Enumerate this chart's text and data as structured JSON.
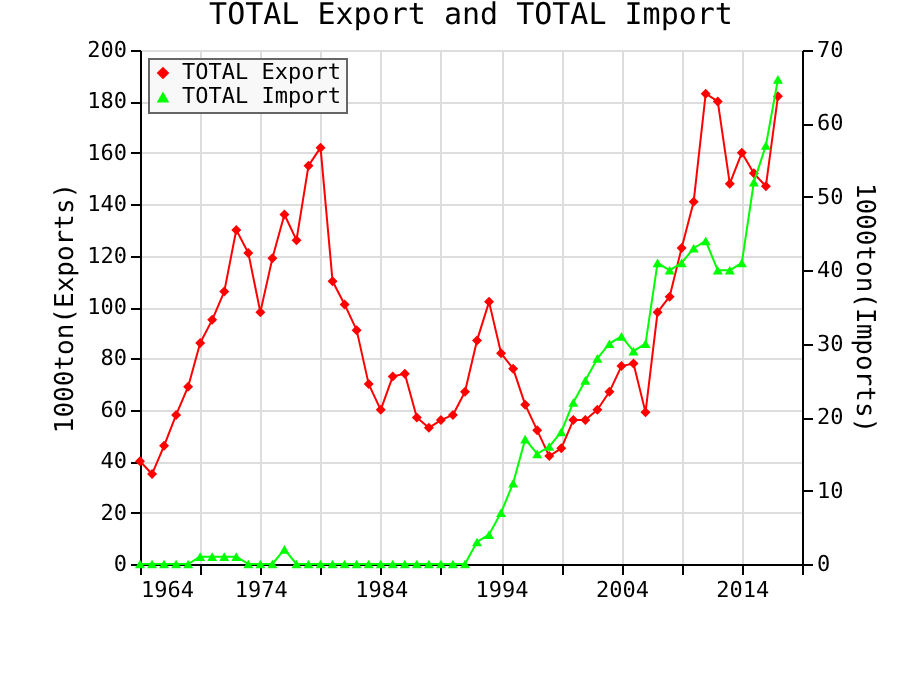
{
  "chart_data": {
    "type": "line",
    "title": "TOTAL Export and TOTAL Import",
    "ylabel": "1000ton(Exports)",
    "y2label": "1000ton(Imports)",
    "x": [
      1964,
      1965,
      1966,
      1967,
      1968,
      1969,
      1970,
      1971,
      1972,
      1973,
      1974,
      1975,
      1976,
      1977,
      1978,
      1979,
      1980,
      1981,
      1982,
      1983,
      1984,
      1985,
      1986,
      1987,
      1988,
      1989,
      1990,
      1991,
      1992,
      1993,
      1994,
      1995,
      1996,
      1997,
      1998,
      1999,
      2000,
      2001,
      2002,
      2003,
      2004,
      2005,
      2006,
      2007,
      2008,
      2009,
      2010,
      2011,
      2012,
      2013,
      2014,
      2015,
      2016,
      2017
    ],
    "series": [
      {
        "name": "TOTAL Export",
        "color": "#ff0000",
        "marker": "diamond",
        "values": [
          40,
          35,
          46,
          58,
          69,
          86,
          95,
          106,
          130,
          121,
          98,
          119,
          136,
          126,
          155,
          162,
          110,
          101,
          91,
          70,
          60,
          73,
          74,
          57,
          53,
          56,
          58,
          67,
          87,
          102,
          82,
          76,
          62,
          52,
          42,
          45,
          56,
          56,
          60,
          67,
          77,
          78,
          59,
          98,
          104,
          123,
          141,
          183,
          180,
          148,
          160,
          152,
          147,
          182
        ]
      },
      {
        "name": "TOTAL Import",
        "color": "#00ff00",
        "marker": "triangle",
        "axis": "y2",
        "values": [
          0,
          0,
          0,
          0,
          0,
          1,
          1,
          1,
          1,
          0,
          0,
          0,
          2,
          0,
          0,
          0,
          0,
          0,
          0,
          0,
          0,
          0,
          0,
          0,
          0,
          0,
          0,
          0,
          3,
          4,
          7,
          11,
          17,
          15,
          16,
          18,
          22,
          25,
          28,
          30,
          31,
          29,
          30,
          41,
          40,
          41,
          43,
          44,
          40,
          40,
          41,
          52,
          57,
          66
        ]
      }
    ],
    "xlim": [
      1964,
      2019
    ],
    "xticks": [
      1964,
      {
        "value": 1969,
        "label": null
      },
      1974,
      {
        "value": 1979,
        "label": null
      },
      1984,
      {
        "value": 1989,
        "label": null
      },
      1994,
      {
        "value": 1999,
        "label": null
      },
      2004,
      {
        "value": 2009,
        "label": null
      },
      2014,
      {
        "value": 2019,
        "label": null
      }
    ],
    "ylim": [
      0,
      200
    ],
    "yticks": [
      0,
      20,
      40,
      60,
      80,
      100,
      120,
      140,
      160,
      180,
      200
    ],
    "y2lim": [
      0,
      70
    ],
    "y2ticks": [
      0,
      10,
      20,
      30,
      40,
      50,
      60,
      70
    ],
    "grid": true,
    "legend": "top left"
  }
}
